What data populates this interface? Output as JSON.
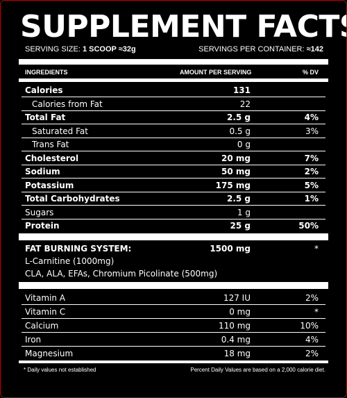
{
  "title": "SUPPLEMENT FACTS",
  "serving": {
    "size_label": "SERVING SIZE:",
    "size_value": "1 SCOOP ≈32g",
    "per_container_label": "SERVINGS PER CONTAINER:",
    "per_container_value": "≈142"
  },
  "header": {
    "ingredients": "INGREDIENTS",
    "amount": "AMOUNT PER SERVING",
    "dv": "% DV"
  },
  "nutrients": [
    {
      "name": "Calories",
      "amount": "131",
      "dv": ""
    },
    {
      "name": "Calories from Fat",
      "amount": "22",
      "dv": ""
    },
    {
      "name": "Total Fat",
      "amount": "2.5 g",
      "dv": "4%"
    },
    {
      "name": "Saturated Fat",
      "amount": "0.5 g",
      "dv": "3%"
    },
    {
      "name": "Trans Fat",
      "amount": "0 g",
      "dv": ""
    },
    {
      "name": "Cholesterol",
      "amount": "20 mg",
      "dv": "7%"
    },
    {
      "name": "Sodium",
      "amount": "50 mg",
      "dv": "2%"
    },
    {
      "name": "Potassium",
      "amount": "175 mg",
      "dv": "5%"
    },
    {
      "name": "Total Carbohydrates",
      "amount": "2.5 g",
      "dv": "1%"
    },
    {
      "name": "Sugars",
      "amount": "1 g",
      "dv": ""
    },
    {
      "name": "Protein",
      "amount": "25 g",
      "dv": "50%"
    }
  ],
  "fat_burning": {
    "title": "FAT BURNING SYSTEM:",
    "amount": "1500 mg",
    "dv": "*",
    "line1": "L-Carnitine (1000mg)",
    "line2": "CLA, ALA, EFAs, Chromium Picolinate (500mg)"
  },
  "vitamins": [
    {
      "name": "Vitamin A",
      "amount": "127 IU",
      "dv": "2%"
    },
    {
      "name": "Vitamin C",
      "amount": "0 mg",
      "dv": "*"
    },
    {
      "name": "Calcium",
      "amount": "110 mg",
      "dv": "10%"
    },
    {
      "name": "Iron",
      "amount": "0.4 mg",
      "dv": "4%"
    },
    {
      "name": "Magnesium",
      "amount": "18 mg",
      "dv": "2%"
    }
  ],
  "footer": {
    "left": "* Daily values not established",
    "right": "Percent Daily Values are based on a 2,000 calorie diet."
  }
}
